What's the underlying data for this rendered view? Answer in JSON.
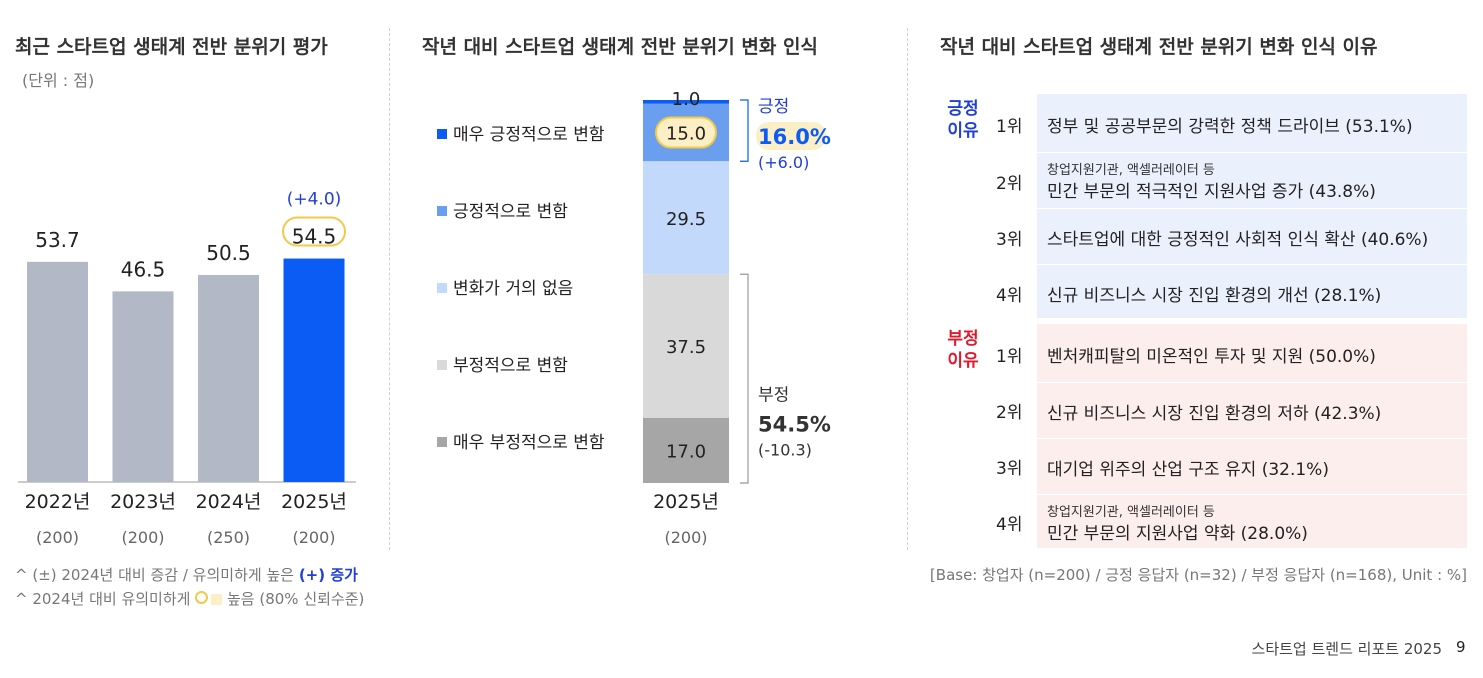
{
  "left": {
    "title": "최근 스타트업 생태계 전반 분위기 평가",
    "unit": "(단위 : 점)",
    "chart_data": {
      "type": "bar",
      "categories": [
        "2022년",
        "2023년",
        "2024년",
        "2025년"
      ],
      "values": [
        53.7,
        46.5,
        50.5,
        54.5
      ],
      "value_labels": [
        "53.7",
        "46.5",
        "50.5",
        "54.5"
      ],
      "samples": [
        "(200)",
        "(200)",
        "(250)",
        "(200)"
      ],
      "change_label": "(+4.0)",
      "ylim": [
        0,
        60
      ],
      "colors": [
        "#b2b8c6",
        "#b2b8c6",
        "#b2b8c6",
        "#0a5cf5"
      ]
    }
  },
  "middle": {
    "title": "작년 대비 스타트업 생태계 전반 분위기 변화 인식",
    "chart_data": {
      "type": "bar",
      "stacked": true,
      "categories": [
        "2025년"
      ],
      "sample": "(200)",
      "series": [
        {
          "name": "매우 긍정적으로 변함",
          "value": 1.0,
          "label": "1.0",
          "color": "#0a5cf5"
        },
        {
          "name": "긍정적으로 변함",
          "value": 15.0,
          "label": "15.0",
          "color": "#6a9ff0"
        },
        {
          "name": "변화가 거의 없음",
          "value": 29.5,
          "label": "29.5",
          "color": "#c3d9fb"
        },
        {
          "name": "부정적으로 변함",
          "value": 37.5,
          "label": "37.5",
          "color": "#d9d9d9"
        },
        {
          "name": "매우 부정적으로 변함",
          "value": 17.0,
          "label": "17.0",
          "color": "#a6a6a6"
        }
      ],
      "positive": {
        "label": "긍정",
        "total": "16.0%",
        "change": "(+6.0)"
      },
      "negative": {
        "label": "부정",
        "total": "54.5%",
        "change": "(-10.3)"
      }
    }
  },
  "right": {
    "title": "작년 대비 스타트업 생태계 전반 분위기 변화 인식 이유",
    "positive_label_1": "긍정",
    "positive_label_2": "이유",
    "negative_label_1": "부정",
    "negative_label_2": "이유",
    "positive": [
      {
        "rank": "1위",
        "sub": "",
        "text": "정부 및 공공부문의 강력한 정책 드라이브 (53.1%)"
      },
      {
        "rank": "2위",
        "sub": "창업지원기관, 액셀러레이터 등",
        "text": "민간 부문의 적극적인 지원사업 증가 (43.8%)"
      },
      {
        "rank": "3위",
        "sub": "",
        "text": "스타트업에 대한 긍정적인 사회적 인식 확산 (40.6%)"
      },
      {
        "rank": "4위",
        "sub": "",
        "text": "신규 비즈니스 시장 진입 환경의 개선 (28.1%)"
      }
    ],
    "negative": [
      {
        "rank": "1위",
        "sub": "",
        "text": "벤처캐피탈의 미온적인 투자 및 지원 (50.0%)"
      },
      {
        "rank": "2위",
        "sub": "",
        "text": "신규 비즈니스 시장 진입 환경의 저하 (42.3%)"
      },
      {
        "rank": "3위",
        "sub": "",
        "text": "대기업 위주의 산업 구조 유지 (32.1%)"
      },
      {
        "rank": "4위",
        "sub": "창업지원기관, 액셀러레이터 등",
        "text": "민간 부문의 지원사업 약화 (28.0%)"
      }
    ]
  },
  "footnotes": {
    "note1_prefix": "^ (±) 2024년 대비 증감 / 유의미하게 높은 ",
    "note1_highlight": "(+) 증가",
    "note2_prefix": "^ 2024년 대비 유의미하게 ",
    "note2_suffix": " 높음 (80% 신뢰수준)",
    "base": "[Base: 창업자 (n=200) / 긍정 응답자 (n=32) / 부정 응답자 (n=168), Unit : %]"
  },
  "footer": {
    "report": "스타트업 트렌드 리포트 2025",
    "page": "9"
  },
  "colors": {
    "accent_blue": "#0a5cf5",
    "text_blue": "#1f3fd6",
    "negative_red": "#e5172b",
    "highlight_yellow": "#fcefc5",
    "highlight_ring": "#f3c94a",
    "positive_bg": "#eaf1fd",
    "negative_bg": "#fdeeee"
  }
}
